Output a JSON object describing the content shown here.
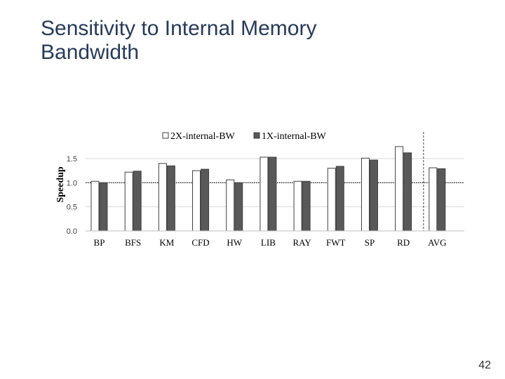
{
  "slide": {
    "title": "Sensitivity to Internal Memory Bandwidth",
    "page_number": "42"
  },
  "colors": {
    "series_1_fill": "#ffffff",
    "series_2_fill": "#595959",
    "bar_stroke": "#3f3f3f",
    "title": "#263a5a"
  },
  "chart_data": {
    "type": "bar",
    "title": "",
    "xlabel": "",
    "ylabel": "Speedup",
    "ylim": [
      0,
      1.5
    ],
    "yticks": [
      "0.0",
      "0.5",
      "1.0",
      "1.5"
    ],
    "grid": true,
    "reference_line": 1.0,
    "separator_before": "AVG",
    "legend_position": "top",
    "categories": [
      "BP",
      "BFS",
      "KM",
      "CFD",
      "HW",
      "LIB",
      "RAY",
      "FWT",
      "SP",
      "RD",
      "AVG"
    ],
    "series": [
      {
        "name": "2X-internal-BW",
        "values": [
          1.03,
          1.22,
          1.4,
          1.25,
          1.06,
          1.53,
          1.03,
          1.3,
          1.51,
          1.75,
          1.31
        ]
      },
      {
        "name": "1X-internal-BW",
        "values": [
          1.0,
          1.24,
          1.35,
          1.28,
          1.0,
          1.53,
          1.03,
          1.34,
          1.47,
          1.62,
          1.29
        ]
      }
    ]
  }
}
